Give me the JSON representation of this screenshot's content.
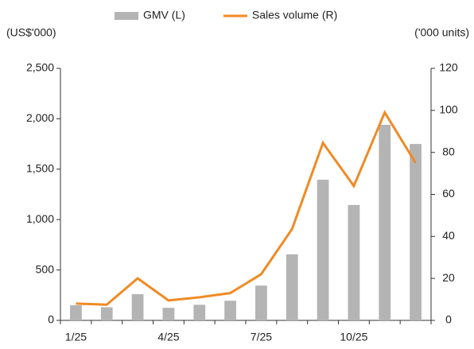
{
  "chart_data": {
    "type": "bar_line",
    "y_label": "(US$'000)",
    "y2_label": "('000 units)",
    "categories": [
      "1/25",
      null,
      null,
      "4/25",
      null,
      null,
      "7/25",
      null,
      null,
      "10/25",
      null,
      null
    ],
    "series": [
      {
        "name": "GMV (L)",
        "type": "bar",
        "color": "#b4b4b4",
        "values": [
          150,
          130,
          260,
          125,
          155,
          195,
          345,
          655,
          1395,
          1145,
          1940,
          1750
        ]
      },
      {
        "name": "Sales volume (R)",
        "type": "line",
        "axis": "y2",
        "color": "#f08a24",
        "values": [
          8,
          7.5,
          20,
          9.5,
          11,
          13,
          22,
          43.5,
          84.5,
          64,
          99,
          75
        ]
      }
    ],
    "ylim": [
      0,
      2500
    ],
    "yticks": [
      0,
      500,
      {
        "value": 1000,
        "label": "1,000"
      },
      {
        "value": 1500,
        "label": "1,500"
      },
      {
        "value": 2000,
        "label": "2,000"
      },
      {
        "value": 2500,
        "label": "2,500"
      }
    ],
    "y2lim": [
      0,
      120
    ],
    "y2ticks": [
      0,
      20,
      40,
      60,
      80,
      100,
      120
    ],
    "legend": "top"
  }
}
